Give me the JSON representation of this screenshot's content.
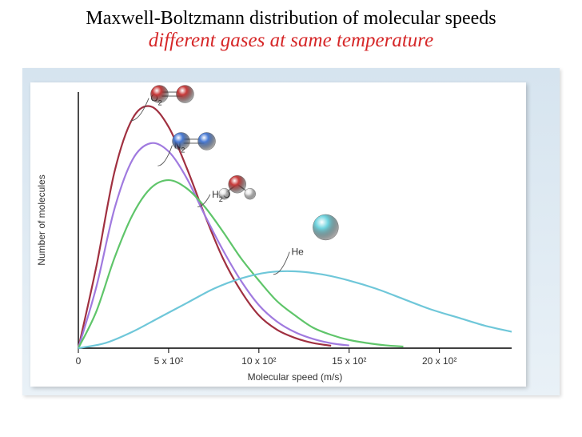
{
  "title": {
    "line1": "Maxwell-Boltzmann distribution of molecular speeds",
    "line2": "different gases at same temperature",
    "line1_color": "#000000",
    "line2_color": "#d62728",
    "font_family": "Times New Roman",
    "line1_fontsize": 24,
    "line2_fontsize": 25
  },
  "chart": {
    "type": "line",
    "background_gradient": [
      "#d6e4ef",
      "#e9f1f7"
    ],
    "plot_background": "#ffffff",
    "xlabel": "Molecular speed (m/s)",
    "ylabel": "Number of molecules",
    "axis_color": "#000000",
    "axis_fontsize": 12,
    "xlim": [
      0,
      2400
    ],
    "ylim": [
      0,
      1.25
    ],
    "xticks": [
      0,
      500,
      1000,
      1500,
      2000
    ],
    "xtick_labels": [
      "0",
      "5 x 10²",
      "10 x 10²",
      "15 x 10²",
      "20 x 10²"
    ],
    "line_width": 2.2,
    "series": [
      {
        "name": "O2",
        "label": "O₂",
        "color": "#a03040",
        "molecule_colors": [
          "#c83a3a",
          "#c83a3a"
        ],
        "molecule_type": "diatomic",
        "points_x": [
          0,
          100,
          200,
          300,
          400,
          500,
          600,
          700,
          800,
          900,
          1000,
          1100,
          1200,
          1300,
          1400
        ],
        "points_y": [
          0,
          0.4,
          0.86,
          1.12,
          1.18,
          1.08,
          0.88,
          0.65,
          0.44,
          0.28,
          0.16,
          0.09,
          0.05,
          0.025,
          0.012
        ]
      },
      {
        "name": "N2",
        "label": "N₂",
        "color": "#a07adf",
        "molecule_colors": [
          "#4a7cd6",
          "#4a7cd6"
        ],
        "molecule_type": "diatomic",
        "points_x": [
          0,
          100,
          200,
          300,
          400,
          500,
          600,
          700,
          800,
          900,
          1000,
          1100,
          1200,
          1300,
          1400,
          1500
        ],
        "points_y": [
          0,
          0.3,
          0.68,
          0.92,
          1.0,
          0.96,
          0.83,
          0.65,
          0.48,
          0.33,
          0.21,
          0.13,
          0.078,
          0.045,
          0.024,
          0.013
        ]
      },
      {
        "name": "H2O",
        "label": "H₂O",
        "color": "#5fc56a",
        "molecule_colors": [
          "#c83a3a",
          "#e8e8e8",
          "#e8e8e8"
        ],
        "molecule_type": "bent",
        "points_x": [
          0,
          100,
          200,
          300,
          400,
          500,
          600,
          700,
          800,
          900,
          1000,
          1100,
          1200,
          1300,
          1400,
          1500,
          1600,
          1700,
          1800
        ],
        "points_y": [
          0,
          0.18,
          0.44,
          0.65,
          0.78,
          0.82,
          0.78,
          0.69,
          0.57,
          0.44,
          0.33,
          0.23,
          0.16,
          0.1,
          0.065,
          0.04,
          0.025,
          0.014,
          0.008
        ]
      },
      {
        "name": "He",
        "label": "He",
        "color": "#6fc7d9",
        "molecule_colors": [
          "#6fd4df"
        ],
        "molecule_type": "mono",
        "points_x": [
          0,
          150,
          300,
          450,
          600,
          750,
          900,
          1050,
          1200,
          1350,
          1500,
          1650,
          1800,
          1950,
          2100,
          2250,
          2400
        ],
        "points_y": [
          0,
          0.025,
          0.08,
          0.15,
          0.22,
          0.29,
          0.34,
          0.37,
          0.375,
          0.36,
          0.33,
          0.29,
          0.24,
          0.19,
          0.15,
          0.11,
          0.08
        ]
      }
    ]
  }
}
